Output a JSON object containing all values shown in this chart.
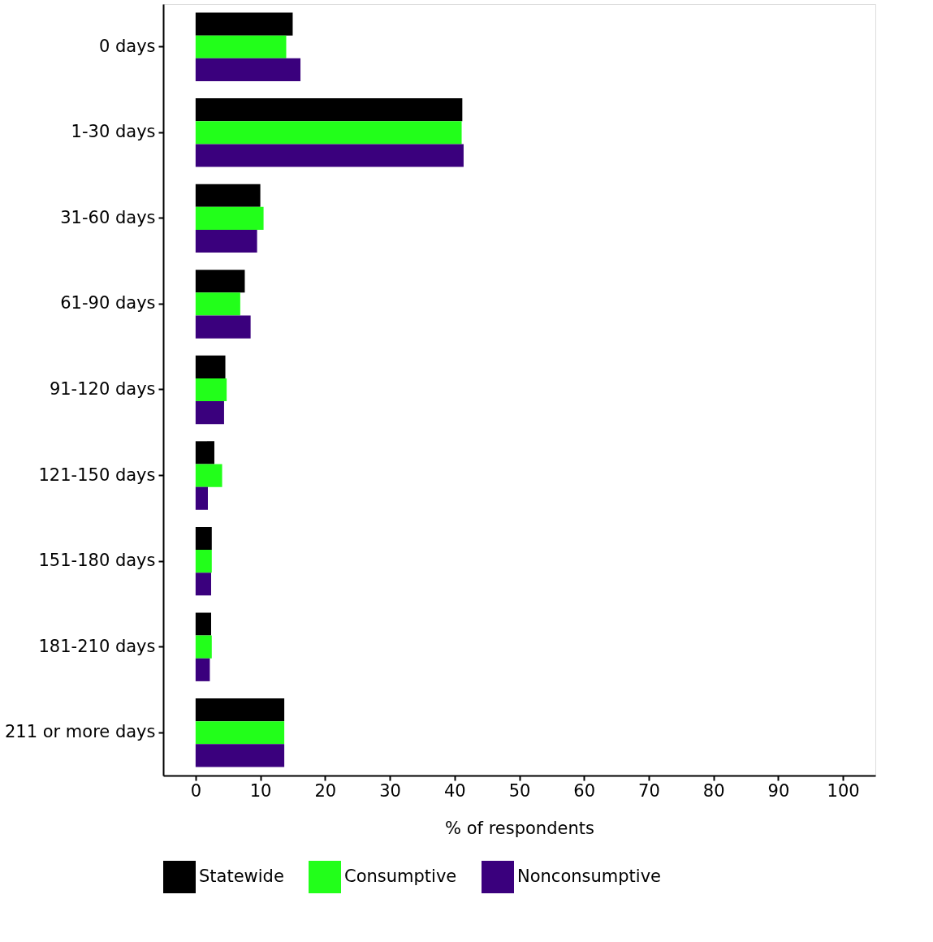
{
  "chart_data": {
    "type": "bar",
    "orientation": "horizontal",
    "xlabel": "% of respondents",
    "categories": [
      "0 days",
      "1-30 days",
      "31-60 days",
      "61-90 days",
      "91-120 days",
      "121-150 days",
      "151-180 days",
      "181-210 days",
      "211 or more days"
    ],
    "series": [
      {
        "name": "Statewide",
        "color": "#000000",
        "values": [
          15.0,
          41.2,
          10.0,
          7.6,
          4.6,
          2.9,
          2.5,
          2.4,
          13.7
        ]
      },
      {
        "name": "Consumptive",
        "color": "#22ff1a",
        "values": [
          14.0,
          41.1,
          10.5,
          6.9,
          4.8,
          4.1,
          2.5,
          2.5,
          13.7
        ]
      },
      {
        "name": "Nonconsumptive",
        "color": "#3a007d",
        "values": [
          16.2,
          41.4,
          9.5,
          8.5,
          4.4,
          1.9,
          2.4,
          2.2,
          13.7
        ]
      }
    ],
    "xlim": [
      -5,
      105
    ],
    "xticks": [
      0,
      10,
      20,
      30,
      40,
      50,
      60,
      70,
      80,
      90,
      100
    ],
    "grid": false,
    "legend": "bottom"
  }
}
